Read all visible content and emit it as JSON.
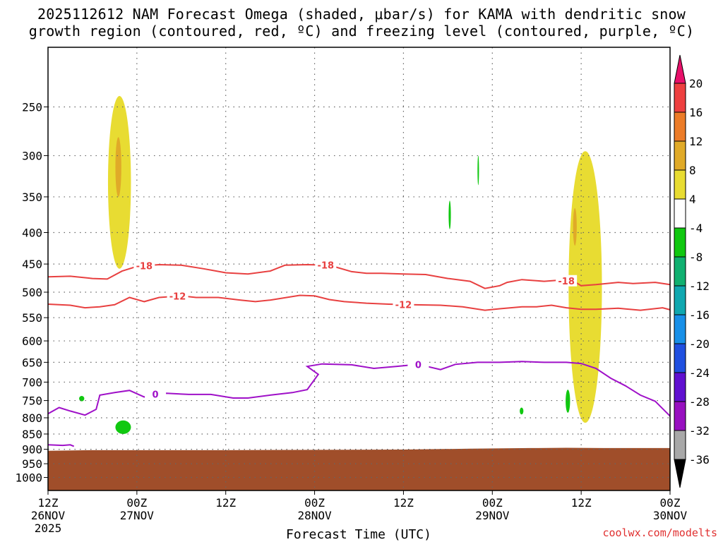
{
  "title": {
    "line1": "2025112612 NAM Forecast Omega (shaded, μbar/s) for KAMA with dendritic snow",
    "line2": "growth region (contoured, red, ºC) and freezing level (contoured, purple, ºC)"
  },
  "credit": "coolwx.com/modelts",
  "chart_data": {
    "type": "heatmap",
    "title": "2025112612 NAM Forecast Omega (shaded, μbar/s) for KAMA with dendritic snow growth region (contoured, red, ºC) and freezing level (contoured, purple, ºC)",
    "xlabel": "Forecast Time (UTC)",
    "ylabel": "",
    "x_unit": "forecast hour from 2025-11-26 12Z",
    "xlim": [
      0,
      84
    ],
    "ylim": [
      1050,
      200
    ],
    "y_scale": "log",
    "grid": true,
    "x_ticks": [
      {
        "x": 0,
        "l1": "12Z",
        "l2": "26NOV",
        "l3": "2025"
      },
      {
        "x": 12,
        "l1": "00Z",
        "l2": "27NOV",
        "l3": ""
      },
      {
        "x": 24,
        "l1": "12Z",
        "l2": "",
        "l3": ""
      },
      {
        "x": 36,
        "l1": "00Z",
        "l2": "28NOV",
        "l3": ""
      },
      {
        "x": 48,
        "l1": "12Z",
        "l2": "",
        "l3": ""
      },
      {
        "x": 60,
        "l1": "00Z",
        "l2": "29NOV",
        "l3": ""
      },
      {
        "x": 72,
        "l1": "12Z",
        "l2": "",
        "l3": ""
      },
      {
        "x": 84,
        "l1": "00Z",
        "l2": "30NOV",
        "l3": ""
      }
    ],
    "y_ticks": [
      250,
      300,
      350,
      400,
      450,
      500,
      550,
      600,
      650,
      700,
      750,
      800,
      850,
      900,
      950,
      1000
    ],
    "colorbar": {
      "labels": [
        "20",
        "16",
        "12",
        "8",
        "4",
        "-4",
        "-8",
        "-12",
        "-16",
        "-20",
        "-24",
        "-28",
        "-32",
        "-36"
      ],
      "colors": [
        "#e8106a",
        "#ee4040",
        "#ec7c28",
        "#e0aa28",
        "#e8dc32",
        "#ffffff",
        "#10c810",
        "#10b070",
        "#10a8b0",
        "#1890e8",
        "#2050e0",
        "#6010d0",
        "#9810c0",
        "#a8a8a8",
        "#000000"
      ]
    },
    "series": [
      {
        "name": "-18",
        "color": "#e84040",
        "points": [
          [
            0,
            472
          ],
          [
            3,
            471
          ],
          [
            6,
            475
          ],
          [
            8,
            476
          ],
          [
            10,
            462
          ],
          [
            12,
            454
          ],
          [
            15,
            451
          ],
          [
            18,
            452
          ],
          [
            21,
            458
          ],
          [
            24,
            465
          ],
          [
            27,
            467
          ],
          [
            30,
            462
          ],
          [
            32,
            452
          ],
          [
            35,
            451
          ],
          [
            38,
            452
          ],
          [
            41,
            463
          ],
          [
            43,
            466
          ],
          [
            45,
            466
          ],
          [
            48,
            467
          ],
          [
            51,
            468
          ],
          [
            54,
            475
          ],
          [
            57,
            480
          ],
          [
            59,
            493
          ],
          [
            61,
            488
          ],
          [
            62,
            482
          ],
          [
            64,
            477
          ],
          [
            67,
            480
          ],
          [
            69,
            478
          ],
          [
            71,
            480
          ],
          [
            72,
            488
          ],
          [
            74,
            486
          ],
          [
            77,
            482
          ],
          [
            79,
            484
          ],
          [
            82,
            482
          ],
          [
            84,
            486
          ]
        ],
        "label_x": [
          13,
          37.5,
          70
        ]
      },
      {
        "name": "-12",
        "color": "#e84040",
        "points": [
          [
            0,
            523
          ],
          [
            3,
            525
          ],
          [
            5,
            530
          ],
          [
            7,
            528
          ],
          [
            9,
            524
          ],
          [
            11,
            510
          ],
          [
            13,
            518
          ],
          [
            15,
            510
          ],
          [
            18,
            507
          ],
          [
            20,
            510
          ],
          [
            23,
            510
          ],
          [
            26,
            515
          ],
          [
            28,
            518
          ],
          [
            30,
            515
          ],
          [
            34,
            506
          ],
          [
            36,
            507
          ],
          [
            38,
            514
          ],
          [
            40,
            518
          ],
          [
            43,
            521
          ],
          [
            46,
            523
          ],
          [
            49,
            524
          ],
          [
            53,
            525
          ],
          [
            56,
            528
          ],
          [
            59,
            535
          ],
          [
            61,
            532
          ],
          [
            64,
            528
          ],
          [
            66,
            528
          ],
          [
            68,
            525
          ],
          [
            70,
            530
          ],
          [
            72,
            533
          ],
          [
            74,
            533
          ],
          [
            77,
            531
          ],
          [
            80,
            535
          ],
          [
            83,
            530
          ],
          [
            84,
            534
          ]
        ],
        "label_x": [
          17.5,
          48
        ]
      },
      {
        "name": "0",
        "color": "#9f10c8",
        "points": [
          [
            0,
            788
          ],
          [
            1.5,
            770
          ],
          [
            3,
            780
          ],
          [
            5,
            792
          ],
          [
            6.5,
            775
          ],
          [
            7,
            735
          ],
          [
            9,
            728
          ],
          [
            11,
            722
          ],
          [
            13,
            740
          ],
          [
            14,
            733
          ],
          [
            16,
            730
          ],
          [
            19,
            733
          ],
          [
            22,
            733
          ],
          [
            25,
            743
          ],
          [
            27,
            743
          ],
          [
            30,
            735
          ],
          [
            33,
            728
          ],
          [
            35,
            720
          ],
          [
            36.5,
            680
          ],
          [
            35,
            660
          ],
          [
            37,
            654
          ],
          [
            41,
            656
          ],
          [
            44,
            665
          ],
          [
            47,
            660
          ],
          [
            50,
            655
          ],
          [
            53,
            668
          ],
          [
            55,
            655
          ],
          [
            58,
            650
          ],
          [
            61,
            650
          ],
          [
            64,
            648
          ],
          [
            67,
            650
          ],
          [
            70,
            650
          ],
          [
            72,
            653
          ],
          [
            74,
            665
          ],
          [
            76,
            690
          ],
          [
            78,
            710
          ],
          [
            80,
            735
          ],
          [
            82,
            752
          ],
          [
            84,
            795
          ]
        ],
        "label_x": [
          14.5,
          50
        ]
      },
      {
        "name": "0",
        "color": "#9f10c8",
        "points": [
          [
            0,
            885
          ],
          [
            2,
            887
          ],
          [
            3,
            885
          ],
          [
            3.5,
            890
          ]
        ],
        "label_x": []
      }
    ],
    "omega_shaded": [
      {
        "range": "4 to 8",
        "color": "#e8dc32",
        "x": [
          8.1,
          11.2
        ],
        "p": [
          240,
          458
        ]
      },
      {
        "range": "8 to 12",
        "color": "#e0aa28",
        "x": [
          9.1,
          9.9
        ],
        "p": [
          280,
          350
        ]
      },
      {
        "range": "4 to 8",
        "color": "#e8dc32",
        "x": [
          70.3,
          74.8
        ],
        "p": [
          295,
          815
        ]
      },
      {
        "range": "8 to 12",
        "color": "#e0aa28",
        "x": [
          70.9,
          71.4
        ],
        "p": [
          365,
          420
        ]
      },
      {
        "range": "-8 to -4",
        "color": "#10c810",
        "x": [
          58,
          58.2
        ],
        "p": [
          300,
          335
        ]
      },
      {
        "range": "-8 to -4",
        "color": "#10c810",
        "x": [
          54.1,
          54.4
        ],
        "p": [
          355,
          395
        ]
      },
      {
        "range": "-8 to -4",
        "color": "#10c810",
        "x": [
          69.9,
          70.5
        ],
        "p": [
          720,
          785
        ]
      },
      {
        "range": "-8 to -4",
        "color": "#10c810",
        "x": [
          63.7,
          64.2
        ],
        "p": [
          770,
          790
        ]
      },
      {
        "range": "-8 to -4",
        "color": "#10c810",
        "x": [
          4.2,
          4.9
        ],
        "p": [
          737,
          752
        ]
      },
      {
        "range": "-8 to -4",
        "color": "#10c810",
        "x": [
          9.1,
          11.2
        ],
        "p": [
          808,
          850
        ]
      }
    ],
    "terrain": {
      "color": "#a04e2a",
      "points": [
        [
          0,
          905
        ],
        [
          6,
          903
        ],
        [
          24,
          903
        ],
        [
          48,
          901
        ],
        [
          57,
          898
        ],
        [
          65,
          896
        ],
        [
          70,
          895
        ],
        [
          75,
          896
        ],
        [
          84,
          896
        ]
      ]
    }
  }
}
